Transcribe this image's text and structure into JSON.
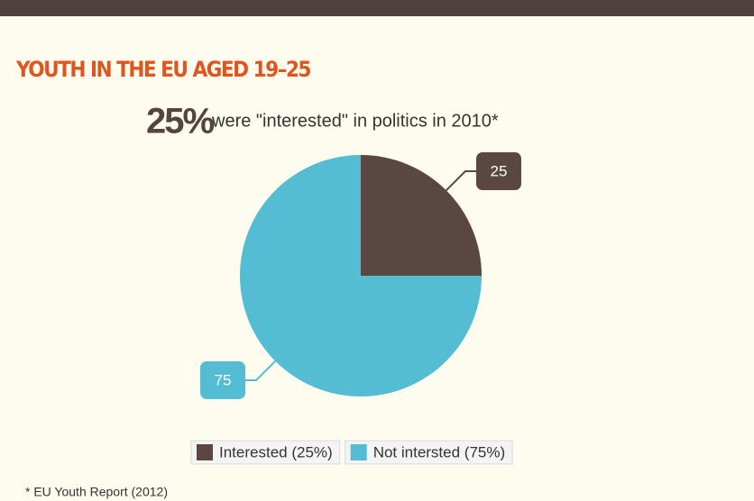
{
  "chart_data": {
    "type": "pie",
    "title": "YOUTH IN THE EU AGED 19–25",
    "highlight": "25%",
    "subtitle": "were \"interested\" in politics in 2010*",
    "categories": [
      "Interested (25%)",
      "Not intersted (75%)"
    ],
    "values": [
      25,
      75
    ],
    "colors": [
      "#5a4741",
      "#55bdd3"
    ],
    "legend": "bottom",
    "footnote": "* EU Youth Report (2012)"
  }
}
